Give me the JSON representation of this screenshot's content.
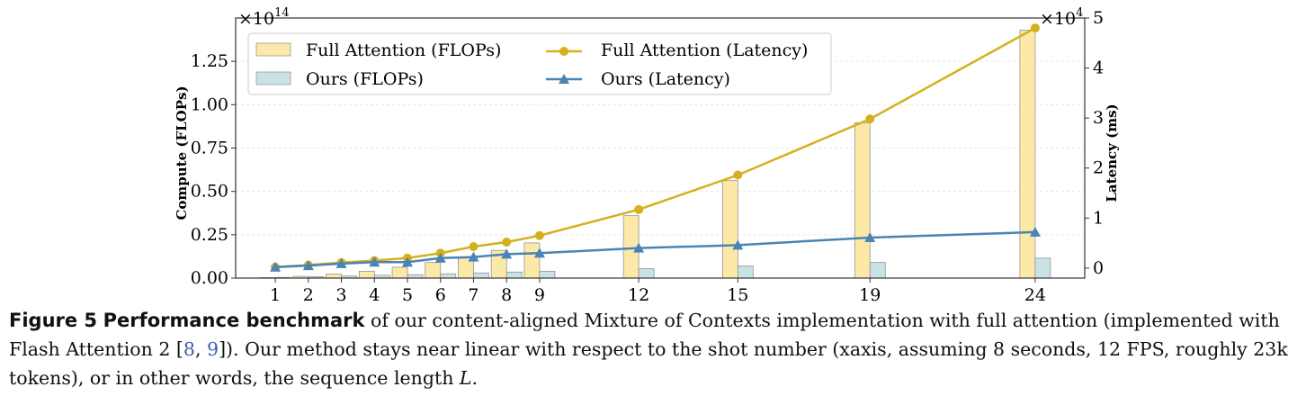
{
  "chart_data": {
    "type": "bar",
    "categories": [
      "1",
      "2",
      "3",
      "4",
      "5",
      "6",
      "7",
      "8",
      "9",
      "12",
      "15",
      "19",
      "24"
    ],
    "x": [
      1,
      2,
      3,
      4,
      5,
      6,
      7,
      8,
      9,
      12,
      15,
      19,
      24
    ],
    "series": [
      {
        "name": "Full Attention (FLOPs)",
        "kind": "bar",
        "axis": "left",
        "color": "#fce9a8",
        "values": [
          0.003,
          0.01,
          0.023,
          0.04,
          0.063,
          0.09,
          0.123,
          0.16,
          0.203,
          0.36,
          0.562,
          0.896,
          1.43
        ]
      },
      {
        "name": "Ours (FLOPs)",
        "kind": "bar",
        "axis": "left",
        "color": "#c9e2e6",
        "values": [
          0.004,
          0.008,
          0.012,
          0.016,
          0.02,
          0.025,
          0.03,
          0.035,
          0.04,
          0.055,
          0.07,
          0.09,
          0.115
        ]
      },
      {
        "name": "Full Attention (Latency)",
        "kind": "line",
        "axis": "right",
        "color": "#d4b11c",
        "marker": "circle",
        "values": [
          0.02,
          0.06,
          0.11,
          0.15,
          0.2,
          0.3,
          0.43,
          0.52,
          0.65,
          1.17,
          1.86,
          2.98,
          4.8
        ]
      },
      {
        "name": "Ours (Latency)",
        "kind": "line",
        "axis": "right",
        "color": "#4a84b5",
        "marker": "triangle",
        "values": [
          0.02,
          0.05,
          0.09,
          0.12,
          0.12,
          0.2,
          0.22,
          0.28,
          0.3,
          0.4,
          0.46,
          0.61,
          0.72
        ]
      }
    ],
    "y_left": {
      "label": "Compute (FLOPs)",
      "multiplier": "×10",
      "exponent": "14",
      "ylim": [
        0,
        1.5
      ],
      "ticks": [
        "0.00",
        "0.25",
        "0.50",
        "0.75",
        "1.00",
        "1.25"
      ]
    },
    "y_right": {
      "label": "Latency (ms)",
      "multiplier": "×10",
      "exponent": "4",
      "ylim": [
        -0.2,
        5.0
      ],
      "ticks": [
        "0",
        "1",
        "2",
        "3",
        "4",
        "5"
      ]
    },
    "xlim": [
      -0.2,
      25.5
    ],
    "grid": "horizontal-light",
    "legend": "top-left, two columns"
  },
  "caption": {
    "label": "Figure 5",
    "title": "Performance benchmark",
    "text_1": " of our content-aligned Mixture of Contexts implementation with full attention (implemented with Flash Attention 2 [",
    "cite_1": "8",
    "sep": ", ",
    "cite_2": "9",
    "text_2": "]). Our method stays near linear with respect to the shot number (xaxis, assuming 8 seconds, 12 FPS, roughly 23k tokens), or in other words, the sequence length ",
    "math": "L",
    "text_3": "."
  }
}
